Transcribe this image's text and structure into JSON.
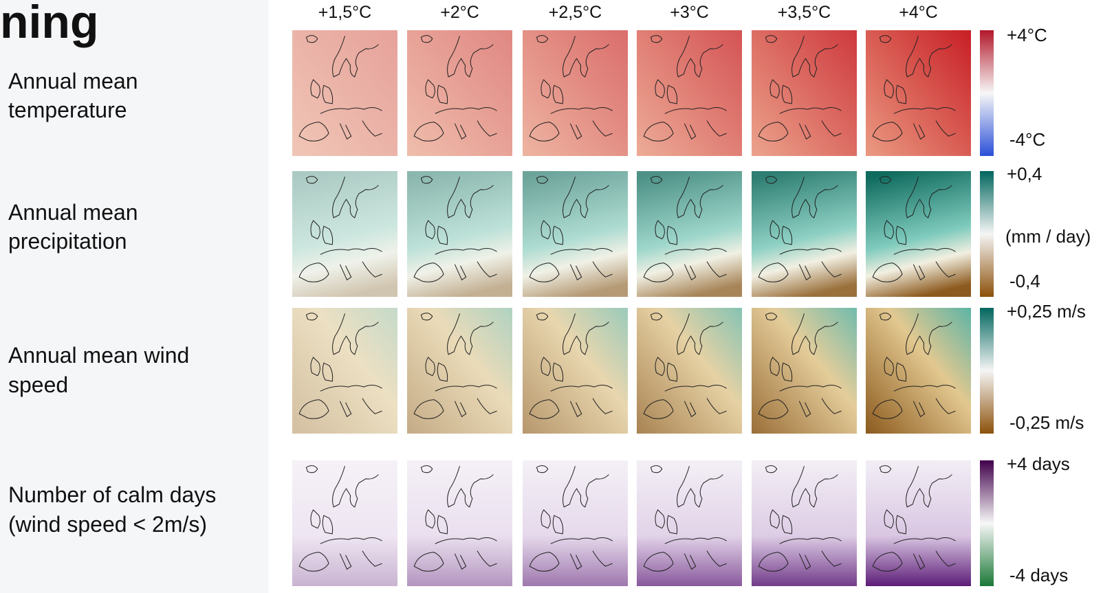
{
  "title": "ning",
  "column_headers": [
    "+1,5°C",
    "+2°C",
    "+2,5°C",
    "+3°C",
    "+3,5°C",
    "+4°C"
  ],
  "rows": [
    {
      "label": [
        "Annual mean",
        "temperature"
      ],
      "scale": {
        "max": "+4°C",
        "min": "-4°C"
      }
    },
    {
      "label": [
        "Annual mean",
        "precipitation"
      ],
      "scale": {
        "max": "+0,4",
        "unit": "(mm / day)",
        "min": "-0,4"
      }
    },
    {
      "label": [
        "Annual mean wind",
        "speed"
      ],
      "scale": {
        "max": "+0,25 m/s",
        "min": "-0,25 m/s"
      }
    },
    {
      "label": [
        "Number of calm days",
        "(wind speed < 2m/s)"
      ],
      "scale": {
        "max": "+4 days",
        "min": "-4 days"
      }
    }
  ]
}
